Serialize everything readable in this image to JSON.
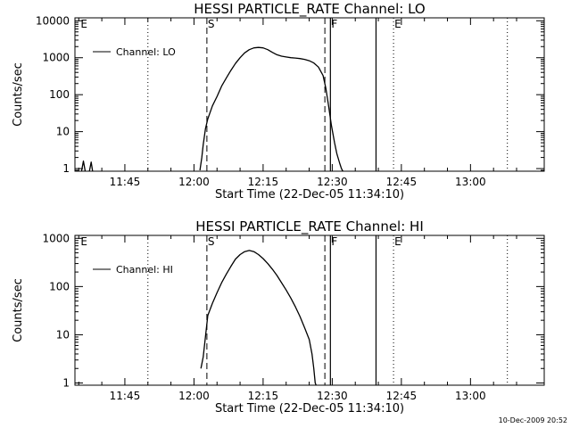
{
  "chart_data": [
    {
      "type": "line",
      "title": "HESSI PARTICLE_RATE Channel: LO",
      "ylabel": "Counts/sec",
      "xlabel": "Start Time (22-Dec-05 11:34:10)",
      "x_tick_labels": [
        "11:45",
        "12:00",
        "12:15",
        "12:30",
        "12:45",
        "13:00"
      ],
      "x_tick_minutes": [
        705,
        720,
        735,
        750,
        765,
        780
      ],
      "xlim_minutes": [
        694.17,
        796.0
      ],
      "y_scale": "log",
      "ylim": [
        0.85,
        12000
      ],
      "y_tick_labels": [
        "1",
        "10",
        "100",
        "1000",
        "10000"
      ],
      "y_tick_values": [
        1,
        10,
        100,
        1000,
        10000
      ],
      "legend": "Channel: LO",
      "legend_position": "top-left",
      "event_markers": [
        {
          "label": "S",
          "minute": 722.8,
          "style": "dashed"
        },
        {
          "label": "",
          "minute": 748.4,
          "style": "dashed"
        },
        {
          "label": "F",
          "minute": 749.6,
          "style": "solid"
        },
        {
          "label": "",
          "minute": 759.5,
          "style": "solid"
        },
        {
          "label": "E",
          "minute": 763.3,
          "style": "dotted"
        },
        {
          "label": "E",
          "minute": 695.2,
          "style": "none"
        }
      ],
      "dotted_lines_minutes": [
        710.0,
        788.0
      ],
      "series": [
        {
          "name": "Channel: LO",
          "segments": [
            [
              [
                695.6,
                0.85
              ],
              [
                696.0,
                1.6
              ],
              [
                696.4,
                0.85
              ]
            ],
            [
              [
                697.3,
                0.85
              ],
              [
                697.7,
                1.5
              ],
              [
                698.0,
                0.85
              ]
            ],
            [
              [
                721.3,
                0.9
              ],
              [
                721.7,
                2.0
              ],
              [
                722.0,
                4.5
              ],
              [
                722.5,
                12
              ],
              [
                723.0,
                22
              ],
              [
                724.0,
                50
              ],
              [
                725.0,
                90
              ],
              [
                726.0,
                170
              ],
              [
                727.0,
                280
              ],
              [
                728.0,
                450
              ],
              [
                729.0,
                700
              ],
              [
                730.0,
                1000
              ],
              [
                731.0,
                1350
              ],
              [
                732.0,
                1650
              ],
              [
                733.0,
                1850
              ],
              [
                734.0,
                1900
              ],
              [
                735.0,
                1850
              ],
              [
                736.0,
                1650
              ],
              [
                737.0,
                1400
              ],
              [
                738.0,
                1200
              ],
              [
                739.0,
                1100
              ],
              [
                740.0,
                1050
              ],
              [
                741.0,
                1000
              ],
              [
                742.0,
                980
              ],
              [
                743.0,
                950
              ],
              [
                744.0,
                900
              ],
              [
                745.0,
                830
              ],
              [
                746.0,
                720
              ],
              [
                747.0,
                560
              ],
              [
                748.0,
                330
              ],
              [
                748.6,
                150
              ],
              [
                749.2,
                50
              ],
              [
                749.8,
                15
              ],
              [
                750.5,
                5
              ],
              [
                751.0,
                2.5
              ],
              [
                751.6,
                1.4
              ],
              [
                752.0,
                1.0
              ],
              [
                752.3,
                0.85
              ]
            ]
          ]
        }
      ]
    },
    {
      "type": "line",
      "title": "HESSI PARTICLE_RATE Channel: HI",
      "ylabel": "Counts/sec",
      "xlabel": "Start Time (22-Dec-05 11:34:10)",
      "x_tick_labels": [
        "11:45",
        "12:00",
        "12:15",
        "12:30",
        "12:45",
        "13:00"
      ],
      "x_tick_minutes": [
        705,
        720,
        735,
        750,
        765,
        780
      ],
      "xlim_minutes": [
        694.17,
        796.0
      ],
      "y_scale": "log",
      "ylim": [
        0.9,
        1150
      ],
      "y_tick_labels": [
        "1",
        "10",
        "100",
        "1000"
      ],
      "y_tick_values": [
        1,
        10,
        100,
        1000
      ],
      "legend": "Channel: HI",
      "legend_position": "top-left",
      "event_markers": [
        {
          "label": "S",
          "minute": 722.8,
          "style": "dashed"
        },
        {
          "label": "",
          "minute": 748.4,
          "style": "dashed"
        },
        {
          "label": "F",
          "minute": 749.6,
          "style": "solid"
        },
        {
          "label": "",
          "minute": 759.5,
          "style": "solid"
        },
        {
          "label": "E",
          "minute": 763.3,
          "style": "dotted"
        },
        {
          "label": "E",
          "minute": 695.2,
          "style": "none"
        }
      ],
      "dotted_lines_minutes": [
        710.0,
        788.0
      ],
      "series": [
        {
          "name": "Channel: HI",
          "segments": [
            [
              [
                721.5,
                2.0
              ],
              [
                722.0,
                3.5
              ],
              [
                723.0,
                25
              ],
              [
                724.0,
                45
              ],
              [
                725.0,
                75
              ],
              [
                726.0,
                120
              ],
              [
                727.0,
                180
              ],
              [
                728.0,
                260
              ],
              [
                729.0,
                370
              ],
              [
                730.0,
                460
              ],
              [
                731.0,
                530
              ],
              [
                732.0,
                560
              ],
              [
                733.0,
                530
              ],
              [
                734.0,
                460
              ],
              [
                735.0,
                380
              ],
              [
                736.0,
                300
              ],
              [
                737.0,
                230
              ],
              [
                738.0,
                170
              ],
              [
                739.0,
                120
              ],
              [
                740.0,
                85
              ],
              [
                741.0,
                58
              ],
              [
                742.0,
                38
              ],
              [
                743.0,
                24
              ],
              [
                744.0,
                14
              ],
              [
                745.0,
                8
              ],
              [
                745.6,
                4
              ],
              [
                746.0,
                2
              ],
              [
                746.3,
                1.0
              ],
              [
                746.5,
                0.9
              ]
            ]
          ]
        }
      ]
    }
  ],
  "timestamp": "10-Dec-2009 20:52"
}
